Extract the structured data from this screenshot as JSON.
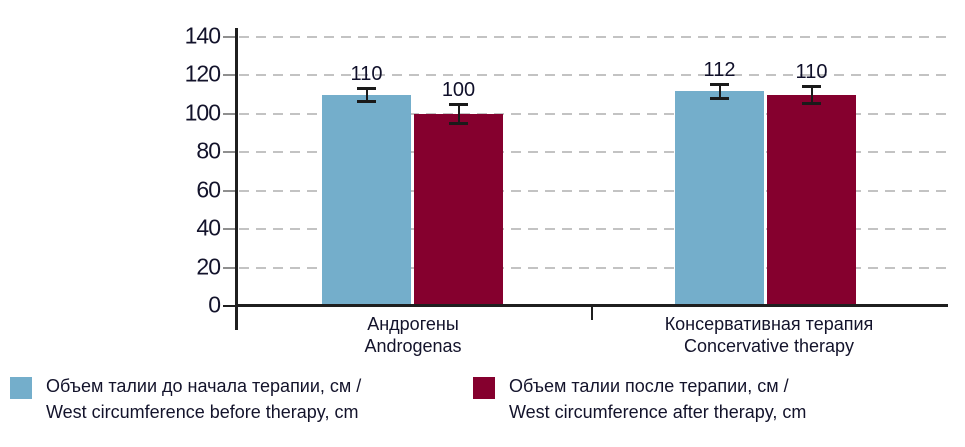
{
  "chart_data": {
    "type": "bar",
    "title": "",
    "categories": [
      {
        "line1": "Андрогены",
        "line2": "Androgenas"
      },
      {
        "line1": "Консервативная терапия",
        "line2": "Concervative therapy"
      }
    ],
    "series": [
      {
        "name_ru": "Объем талии до начала терапии, см /",
        "name_en": "West circumference before therapy, cm",
        "color": "#74AECB",
        "values": [
          110,
          112
        ],
        "errors": [
          3.5,
          3.5
        ]
      },
      {
        "name_ru": "Объем талии после терапии, см /",
        "name_en": "West circumference after therapy, cm",
        "color": "#85002E",
        "values": [
          100,
          110
        ],
        "errors": [
          5,
          4.5
        ]
      }
    ],
    "ylim": [
      0,
      140
    ],
    "yticks": [
      0,
      20,
      40,
      60,
      80,
      100,
      120,
      140
    ],
    "grid": "dashed-horizontal",
    "legend_position": "bottom",
    "error_bars": true
  },
  "colors": {
    "series_before": "#74AECB",
    "series_after": "#85002E",
    "gridline": "#c3c3c3",
    "axis": "#1f1f1f",
    "text": "#13132b"
  }
}
